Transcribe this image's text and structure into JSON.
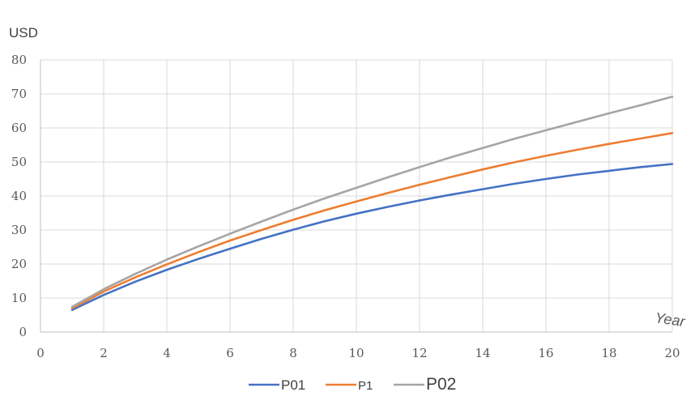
{
  "chart_data": {
    "type": "line",
    "y_unit_label": "USD",
    "x_axis_label": "Year",
    "xlim": [
      0,
      20
    ],
    "ylim": [
      0,
      80
    ],
    "x_ticks": [
      0,
      2,
      4,
      6,
      8,
      10,
      12,
      14,
      16,
      18,
      20
    ],
    "y_ticks": [
      0,
      10,
      20,
      30,
      40,
      50,
      60,
      70,
      80
    ],
    "grid": true,
    "legend_position": "bottom",
    "x": [
      1,
      2,
      3,
      4,
      5,
      6,
      7,
      8,
      9,
      10,
      11,
      12,
      13,
      14,
      15,
      16,
      17,
      18,
      19,
      20
    ],
    "series": [
      {
        "name": "P01",
        "color": "#4472C4",
        "values": [
          6.5,
          10.9,
          14.8,
          18.3,
          21.5,
          24.5,
          27.4,
          30.1,
          32.6,
          34.8,
          36.8,
          38.7,
          40.4,
          42.0,
          43.6,
          45.0,
          46.3,
          47.4,
          48.5,
          49.4
        ]
      },
      {
        "name": "P1",
        "color": "#ED7D31",
        "values": [
          7.0,
          11.9,
          16.1,
          19.9,
          23.5,
          26.9,
          30.0,
          33.0,
          35.8,
          38.4,
          40.9,
          43.3,
          45.6,
          47.8,
          49.9,
          51.8,
          53.6,
          55.3,
          56.9,
          58.5
        ]
      },
      {
        "name": "P02",
        "color": "#A5A5A5",
        "values": [
          7.4,
          12.6,
          17.1,
          21.3,
          25.2,
          28.9,
          32.5,
          36.0,
          39.3,
          42.4,
          45.5,
          48.5,
          51.4,
          54.1,
          56.8,
          59.3,
          61.8,
          64.3,
          66.7,
          69.2
        ]
      }
    ]
  }
}
